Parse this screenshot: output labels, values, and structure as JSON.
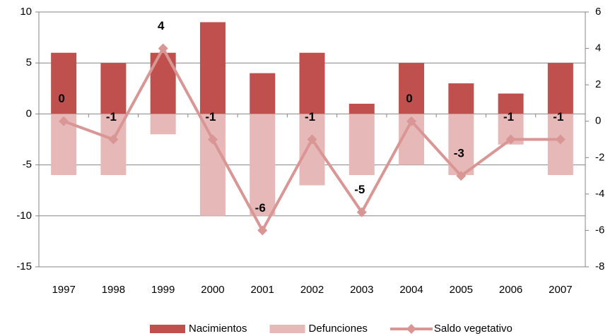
{
  "chart_data": {
    "type": "bar-line",
    "categories": [
      "1997",
      "1998",
      "1999",
      "2000",
      "2001",
      "2002",
      "2003",
      "2004",
      "2005",
      "2006",
      "2007"
    ],
    "series": [
      {
        "name": "Nacimientos",
        "type": "bar",
        "color": "#c0504d",
        "values": [
          6,
          5,
          6,
          9,
          4,
          6,
          1,
          5,
          3,
          2,
          5
        ]
      },
      {
        "name": "Defunciones",
        "type": "bar",
        "color": "#e6b9b8",
        "values": [
          -6,
          -6,
          -2,
          -10,
          -10,
          -7,
          -6,
          -5,
          -6,
          -3,
          -6
        ]
      },
      {
        "name": "Saldo vegetativo",
        "type": "line",
        "axis": "y2",
        "color": "#d99694",
        "values": [
          0,
          -1,
          4,
          -1,
          -6,
          -1,
          -5,
          0,
          -3,
          -1,
          -1
        ]
      }
    ],
    "ylim": [
      -15,
      10
    ],
    "yticks": [
      -15,
      -10,
      -5,
      0,
      5,
      10
    ],
    "y2lim": [
      -8,
      6
    ],
    "y2ticks": [
      -8,
      -6,
      -4,
      -2,
      0,
      2,
      4,
      6
    ],
    "grid": true,
    "legend": "bottom"
  }
}
